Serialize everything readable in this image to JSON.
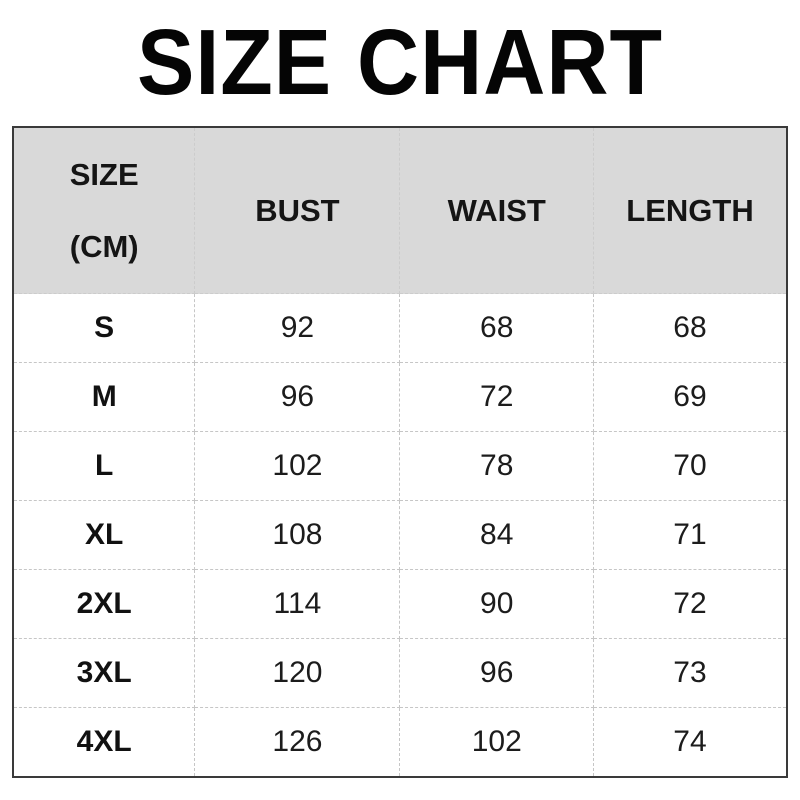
{
  "title": "SIZE CHART",
  "table": {
    "header": {
      "size_line1": "SIZE",
      "size_line2": "(CM)",
      "bust": "BUST",
      "waist": "WAIST",
      "length": "LENGTH"
    },
    "rows": [
      {
        "size": "S",
        "bust": "92",
        "waist": "68",
        "length": "68"
      },
      {
        "size": "M",
        "bust": "96",
        "waist": "72",
        "length": "69"
      },
      {
        "size": "L",
        "bust": "102",
        "waist": "78",
        "length": "70"
      },
      {
        "size": "XL",
        "bust": "108",
        "waist": "84",
        "length": "71"
      },
      {
        "size": "2XL",
        "bust": "114",
        "waist": "90",
        "length": "72"
      },
      {
        "size": "3XL",
        "bust": "120",
        "waist": "96",
        "length": "73"
      },
      {
        "size": "4XL",
        "bust": "126",
        "waist": "102",
        "length": "74"
      }
    ]
  },
  "chart_data": {
    "type": "table",
    "title": "SIZE CHART",
    "unit": "CM",
    "columns": [
      "SIZE (CM)",
      "BUST",
      "WAIST",
      "LENGTH"
    ],
    "rows": [
      [
        "S",
        92,
        68,
        68
      ],
      [
        "M",
        96,
        72,
        69
      ],
      [
        "L",
        102,
        78,
        70
      ],
      [
        "XL",
        108,
        84,
        71
      ],
      [
        "2XL",
        114,
        90,
        72
      ],
      [
        "3XL",
        120,
        96,
        73
      ],
      [
        "4XL",
        126,
        102,
        74
      ]
    ]
  },
  "colors": {
    "header_bg": "#d9d9d9",
    "outer_border": "#3a3a3a",
    "inner_border": "#c6c6c6",
    "text": "#111111"
  }
}
